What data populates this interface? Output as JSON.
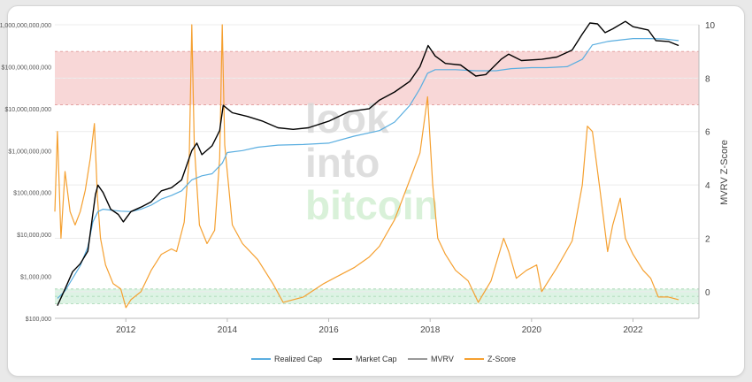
{
  "chart_data": {
    "type": "line",
    "title": "",
    "watermark": [
      "look",
      "into",
      "bitcoin"
    ],
    "xlabel": "",
    "x_ticks": [
      "2012",
      "2014",
      "2016",
      "2018",
      "2020",
      "2022"
    ],
    "xlim": [
      2010.6,
      2023.3
    ],
    "y_left": {
      "scale": "log",
      "ylim": [
        100000,
        1000000000000
      ],
      "ticks": [
        {
          "value": 100000,
          "label": "$100,000"
        },
        {
          "value": 1000000,
          "label": "$1,000,000"
        },
        {
          "value": 10000000,
          "label": "$10,000,000"
        },
        {
          "value": 100000000,
          "label": "$100,000,000"
        },
        {
          "value": 1000000000,
          "label": "$1,000,000,000"
        },
        {
          "value": 10000000000,
          "label": "$10,000,000,000"
        },
        {
          "value": 100000000000,
          "label": "$100,000,000,000"
        },
        {
          "value": 1000000000000,
          "label": "$1,000,000,000,000"
        }
      ]
    },
    "y_right": {
      "label": "MVRV Z-Score",
      "ylim": [
        -1,
        10
      ],
      "ticks": [
        0,
        2,
        4,
        6,
        8,
        10
      ]
    },
    "bands": [
      {
        "name": "top",
        "from": 7,
        "to": 9,
        "color": "#f8d7d7",
        "line_color": "#e09a9a"
      },
      {
        "name": "bottom",
        "from": -0.45,
        "to": 0.1,
        "color": "#ddf3e4",
        "line_color": "#9fd3ad"
      }
    ],
    "grid": true,
    "legend_position": "bottom",
    "series": [
      {
        "name": "Realized Cap",
        "axis": "left",
        "color": "#5aaee0",
        "x": [
          2010.65,
          2010.8,
          2010.95,
          2011.1,
          2011.25,
          2011.35,
          2011.45,
          2011.55,
          2011.7,
          2011.9,
          2012.1,
          2012.3,
          2012.5,
          2012.7,
          2012.9,
          2013.1,
          2013.3,
          2013.5,
          2013.7,
          2013.9,
          2014.0,
          2014.3,
          2014.6,
          2015.0,
          2015.5,
          2016.0,
          2016.5,
          2017.0,
          2017.3,
          2017.6,
          2017.8,
          2017.95,
          2018.1,
          2018.5,
          2018.9,
          2019.3,
          2019.6,
          2020.0,
          2020.3,
          2020.7,
          2021.0,
          2021.2,
          2021.5,
          2021.8,
          2022.0,
          2022.3,
          2022.6,
          2022.9
        ],
        "y": [
          300000,
          450000,
          900000,
          1800000,
          5000000,
          20000000,
          35000000,
          40000000,
          38000000,
          36000000,
          35000000,
          40000000,
          50000000,
          70000000,
          85000000,
          110000000,
          200000000,
          250000000,
          280000000,
          500000000,
          900000000,
          1000000000,
          1200000000,
          1350000000,
          1400000000,
          1500000000,
          2200000000,
          3000000000,
          4800000000,
          12000000000,
          30000000000,
          70000000000,
          85000000000,
          85000000000,
          80000000000,
          80000000000,
          90000000000,
          95000000000,
          95000000000,
          100000000000,
          150000000000,
          330000000000,
          400000000000,
          440000000000,
          470000000000,
          470000000000,
          460000000000,
          420000000000
        ]
      },
      {
        "name": "Market Cap",
        "axis": "left",
        "color": "#000000",
        "x": [
          2010.65,
          2010.8,
          2010.95,
          2011.1,
          2011.25,
          2011.4,
          2011.45,
          2011.55,
          2011.7,
          2011.85,
          2011.95,
          2012.1,
          2012.3,
          2012.5,
          2012.7,
          2012.9,
          2013.1,
          2013.3,
          2013.4,
          2013.5,
          2013.7,
          2013.85,
          2013.92,
          2014.1,
          2014.4,
          2014.7,
          2015.0,
          2015.3,
          2015.6,
          2016.0,
          2016.4,
          2016.8,
          2017.0,
          2017.3,
          2017.6,
          2017.8,
          2017.96,
          2018.1,
          2018.3,
          2018.6,
          2018.9,
          2019.1,
          2019.4,
          2019.55,
          2019.8,
          2020.2,
          2020.5,
          2020.8,
          2021.0,
          2021.15,
          2021.3,
          2021.45,
          2021.6,
          2021.85,
          2022.0,
          2022.3,
          2022.45,
          2022.7,
          2022.9
        ],
        "y": [
          200000,
          500000,
          1300000,
          2000000,
          4000000,
          90000000,
          150000000,
          100000000,
          40000000,
          30000000,
          20000000,
          35000000,
          45000000,
          60000000,
          110000000,
          130000000,
          200000000,
          1000000000,
          1500000000,
          800000000,
          1300000000,
          3000000000,
          12000000000,
          8000000000,
          6500000000,
          5000000000,
          3500000000,
          3200000000,
          3500000000,
          5000000000,
          8500000000,
          10000000000,
          16000000000,
          25000000000,
          45000000000,
          100000000000,
          320000000000,
          180000000000,
          120000000000,
          110000000000,
          60000000000,
          65000000000,
          150000000000,
          200000000000,
          140000000000,
          150000000000,
          170000000000,
          250000000000,
          600000000000,
          1100000000000,
          1050000000000,
          650000000000,
          800000000000,
          1200000000000,
          900000000000,
          750000000000,
          420000000000,
          400000000000,
          320000000000
        ]
      },
      {
        "name": "MVRV",
        "axis": "right",
        "color": "#999999",
        "hidden": true,
        "x": [],
        "y": []
      },
      {
        "name": "Z-Score",
        "axis": "right",
        "color": "#f5a030",
        "x": [
          2010.6,
          2010.65,
          2010.72,
          2010.8,
          2010.9,
          2011.0,
          2011.1,
          2011.2,
          2011.3,
          2011.38,
          2011.44,
          2011.5,
          2011.6,
          2011.75,
          2011.9,
          2012.0,
          2012.1,
          2012.3,
          2012.5,
          2012.7,
          2012.9,
          2013.0,
          2013.15,
          2013.25,
          2013.3,
          2013.35,
          2013.45,
          2013.6,
          2013.75,
          2013.85,
          2013.9,
          2013.95,
          2014.1,
          2014.3,
          2014.6,
          2014.9,
          2015.1,
          2015.5,
          2015.9,
          2016.2,
          2016.5,
          2016.8,
          2017.0,
          2017.3,
          2017.6,
          2017.8,
          2017.95,
          2018.05,
          2018.15,
          2018.3,
          2018.5,
          2018.75,
          2018.95,
          2019.2,
          2019.45,
          2019.55,
          2019.7,
          2019.9,
          2020.1,
          2020.2,
          2020.5,
          2020.8,
          2021.0,
          2021.1,
          2021.2,
          2021.35,
          2021.5,
          2021.6,
          2021.75,
          2021.85,
          2022.0,
          2022.2,
          2022.35,
          2022.5,
          2022.7,
          2022.9
        ],
        "y": [
          3.0,
          6.0,
          2.0,
          4.5,
          3.0,
          2.5,
          3.0,
          3.8,
          5.0,
          6.3,
          3.5,
          2.0,
          1.0,
          0.3,
          0.1,
          -0.6,
          -0.3,
          0.0,
          0.8,
          1.4,
          1.6,
          1.5,
          2.6,
          5.0,
          10.0,
          5.5,
          2.5,
          1.8,
          2.3,
          5.0,
          10.0,
          5.5,
          2.5,
          1.8,
          1.2,
          0.3,
          -0.4,
          -0.2,
          0.3,
          0.6,
          0.9,
          1.3,
          1.7,
          2.7,
          4.2,
          5.2,
          7.3,
          4.0,
          2.0,
          1.4,
          0.8,
          0.4,
          -0.4,
          0.4,
          2.0,
          1.5,
          0.5,
          0.8,
          1.0,
          0.0,
          0.9,
          1.9,
          4.0,
          6.2,
          6.0,
          3.8,
          1.5,
          2.5,
          3.5,
          2.0,
          1.4,
          0.8,
          0.5,
          -0.2,
          -0.2,
          -0.3
        ]
      }
    ]
  }
}
